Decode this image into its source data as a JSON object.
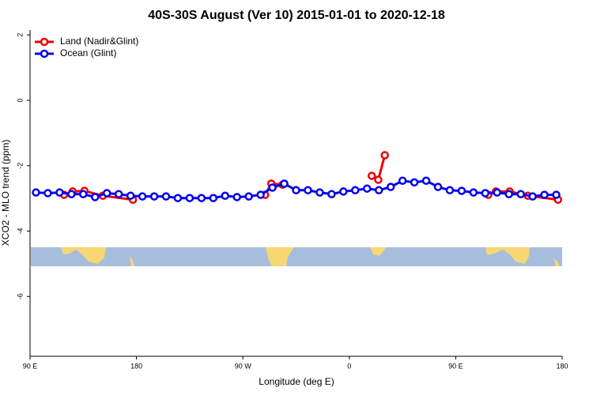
{
  "chart_data": {
    "type": "line",
    "title": "40S-30S August (Ver 10)   2015-01-01 to 2020-12-18",
    "x_label": "Longitude (deg E)",
    "y_label": "XCO2 - MLO trend (ppm)",
    "xlim": [
      90,
      540
    ],
    "ylim": [
      -7.83,
      2.15
    ],
    "xticks": [
      {
        "value": 90,
        "label": "90 E"
      },
      180,
      {
        "value": 270,
        "label": "90 W"
      },
      {
        "value": 360,
        "label": "0"
      },
      {
        "value": 450,
        "label": "90 E"
      },
      {
        "value": 540,
        "label": "180"
      }
    ],
    "yticks": [
      2,
      0,
      -2,
      -4,
      -6
    ],
    "legend": "top-left",
    "series": [
      {
        "name": "Land (Nadir&Glint)",
        "color": "#ee0000",
        "x": [
          118.8,
          126,
          136,
          151.6,
          177,
          null,
          288.8,
          294,
          303.5,
          null,
          379,
          384.5,
          390,
          null,
          477.5,
          484,
          495.6,
          511,
          536.5
        ],
        "values": [
          -2.89,
          -2.79,
          -2.77,
          -2.92,
          -3.04,
          null,
          -2.89,
          -2.55,
          -2.58,
          null,
          -2.31,
          -2.43,
          -1.68,
          null,
          -2.89,
          -2.79,
          -2.79,
          -2.92,
          -3.04
        ]
      },
      {
        "name": "Ocean (Glint)",
        "color": "#0000ee",
        "x": [
          95,
          105,
          115,
          125,
          135,
          145,
          155,
          165,
          175,
          185,
          195,
          205,
          215,
          225,
          235,
          245,
          255,
          265,
          275,
          285,
          295,
          305,
          315,
          325,
          335,
          345,
          355,
          365,
          375,
          385,
          395,
          405,
          415,
          425,
          435,
          445,
          455,
          465,
          475,
          485,
          495,
          505,
          515,
          525,
          535
        ],
        "values": [
          -2.82,
          -2.84,
          -2.82,
          -2.87,
          -2.87,
          -2.96,
          -2.84,
          -2.87,
          -2.92,
          -2.94,
          -2.94,
          -2.94,
          -2.99,
          -2.99,
          -2.99,
          -2.99,
          -2.92,
          -2.96,
          -2.94,
          -2.89,
          -2.67,
          -2.55,
          -2.75,
          -2.75,
          -2.82,
          -2.87,
          -2.79,
          -2.75,
          -2.7,
          -2.75,
          -2.65,
          -2.46,
          -2.51,
          -2.46,
          -2.65,
          -2.75,
          -2.77,
          -2.82,
          -2.84,
          -2.82,
          -2.87,
          -2.87,
          -2.94,
          -2.89,
          -2.89
        ]
      }
    ]
  }
}
